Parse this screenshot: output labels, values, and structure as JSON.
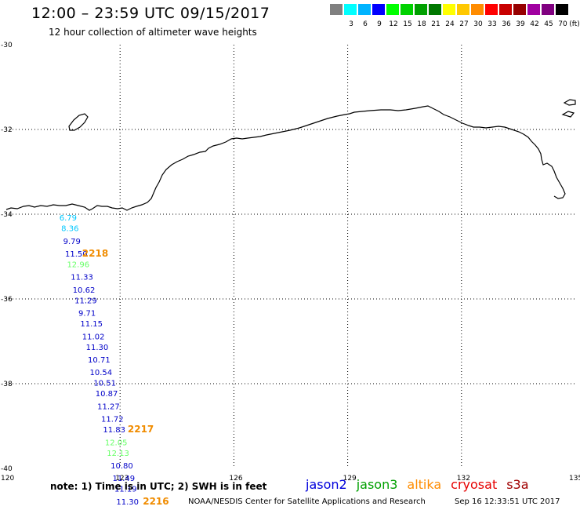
{
  "header": {
    "title": "12:00 – 23:59 UTC 09/15/2017",
    "subtitle": "12 hour collection of altimeter wave heights"
  },
  "legend": {
    "unit": "(ft)",
    "swatches": [
      {
        "color": "#808080",
        "label": ""
      },
      {
        "color": "#00ffff",
        "label": "3"
      },
      {
        "color": "#00b4ff",
        "label": "6"
      },
      {
        "color": "#0000ff",
        "label": "9"
      },
      {
        "color": "#00ff00",
        "label": "12"
      },
      {
        "color": "#00d200",
        "label": "15"
      },
      {
        "color": "#00a000",
        "label": "18"
      },
      {
        "color": "#007800",
        "label": "21"
      },
      {
        "color": "#ffff00",
        "label": "24"
      },
      {
        "color": "#ffc800",
        "label": "27"
      },
      {
        "color": "#ff8c00",
        "label": "30"
      },
      {
        "color": "#ff0000",
        "label": "33"
      },
      {
        "color": "#c80000",
        "label": "36"
      },
      {
        "color": "#960000",
        "label": "39"
      },
      {
        "color": "#a000a0",
        "label": "42"
      },
      {
        "color": "#800080",
        "label": "45"
      },
      {
        "color": "#000000",
        "label": "70"
      }
    ]
  },
  "map": {
    "lon_range": [
      120,
      135
    ],
    "lat_range": [
      -40,
      -30
    ],
    "lon_ticks": [
      "120",
      "123",
      "126",
      "129",
      "132",
      "135"
    ],
    "lat_ticks": [
      "-30",
      "-32",
      "-34",
      "-36",
      "-38",
      "-40"
    ],
    "coastline_color": "#000000",
    "graticule": "dotted"
  },
  "observations": [
    {
      "lon": 121.4,
      "lat": -34.15,
      "value": "6.79",
      "color": "#00c8ff"
    },
    {
      "lon": 121.45,
      "lat": -34.4,
      "value": "8.36",
      "color": "#00c8ff"
    },
    {
      "lon": 121.5,
      "lat": -34.7,
      "value": "9.79",
      "color": "#0000c8"
    },
    {
      "lon": 121.55,
      "lat": -35.0,
      "value": "11.50",
      "color": "#0000c8"
    },
    {
      "lon": 121.6,
      "lat": -35.25,
      "value": "12.96",
      "color": "#66ff66"
    },
    {
      "lon": 121.7,
      "lat": -35.55,
      "value": "11.33",
      "color": "#0000c8"
    },
    {
      "lon": 121.75,
      "lat": -35.85,
      "value": "10.62",
      "color": "#0000c8"
    },
    {
      "lon": 121.8,
      "lat": -36.1,
      "value": "11.29",
      "color": "#0000c8"
    },
    {
      "lon": 121.9,
      "lat": -36.4,
      "value": "9.71",
      "color": "#0000c8"
    },
    {
      "lon": 121.95,
      "lat": -36.65,
      "value": "11.15",
      "color": "#0000c8"
    },
    {
      "lon": 122.0,
      "lat": -36.95,
      "value": "11.02",
      "color": "#0000c8"
    },
    {
      "lon": 122.1,
      "lat": -37.2,
      "value": "11.30",
      "color": "#0000c8"
    },
    {
      "lon": 122.15,
      "lat": -37.5,
      "value": "10.71",
      "color": "#0000c8"
    },
    {
      "lon": 122.2,
      "lat": -37.8,
      "value": "10.54",
      "color": "#0000c8"
    },
    {
      "lon": 122.3,
      "lat": -38.05,
      "value": "10.51",
      "color": "#0000c8"
    },
    {
      "lon": 122.35,
      "lat": -38.3,
      "value": "10.87",
      "color": "#0000c8"
    },
    {
      "lon": 122.4,
      "lat": -38.6,
      "value": "11.27",
      "color": "#0000c8"
    },
    {
      "lon": 122.5,
      "lat": -38.9,
      "value": "11.72",
      "color": "#0000c8"
    },
    {
      "lon": 122.55,
      "lat": -39.15,
      "value": "11.83",
      "color": "#0000c8"
    },
    {
      "lon": 122.6,
      "lat": -39.45,
      "value": "12.05",
      "color": "#66ff66"
    },
    {
      "lon": 122.65,
      "lat": -39.7,
      "value": "12.13",
      "color": "#66ff66"
    },
    {
      "lon": 122.75,
      "lat": -40.0,
      "value": "10.80",
      "color": "#0000c8"
    },
    {
      "lon": 122.8,
      "lat": -40.3,
      "value": "11.49",
      "color": "#0000c8"
    },
    {
      "lon": 122.85,
      "lat": -40.55,
      "value": "11.19",
      "color": "#0000c8"
    },
    {
      "lon": 122.9,
      "lat": -40.85,
      "value": "11.30",
      "color": "#0000c8"
    }
  ],
  "passes": [
    {
      "lon": 122.0,
      "lat": -35.0,
      "label": "2218"
    },
    {
      "lon": 123.2,
      "lat": -39.15,
      "label": "2217"
    },
    {
      "lon": 123.6,
      "lat": -40.85,
      "label": "2216"
    }
  ],
  "footer": {
    "note": "note: 1) Time is in UTC; 2) SWH is in feet",
    "satellites": [
      {
        "name": "jason2",
        "color": "#0000dc"
      },
      {
        "name": "jason3",
        "color": "#00a000"
      },
      {
        "name": "altika",
        "color": "#ff8c00"
      },
      {
        "name": "cryosat",
        "color": "#e60000"
      },
      {
        "name": "s3a",
        "color": "#a00000"
      }
    ],
    "credit": "NOAA/NESDIS Center for Satellite Applications and Research",
    "timestamp": "Sep 16 12:33:51 UTC 2017"
  }
}
